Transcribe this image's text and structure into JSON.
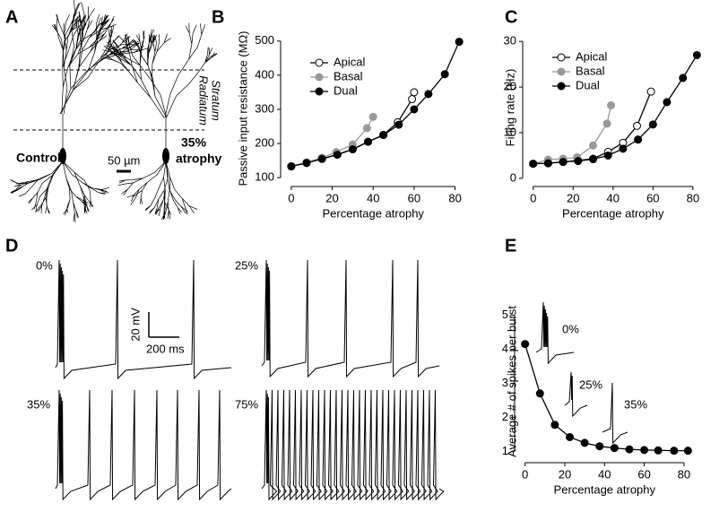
{
  "panel_labels": {
    "a": "A",
    "b": "B",
    "c": "C",
    "d": "D",
    "e": "E"
  },
  "panel_a": {
    "layer_label_1": "Stratum",
    "layer_label_2": "Radiatum",
    "control_label": "Control",
    "atrophy_label_1": "35%",
    "atrophy_label_2": "atrophy",
    "scale_label": "50 µm"
  },
  "panel_d": {
    "trace_labels": [
      "0%",
      "25%",
      "35%",
      "75%"
    ],
    "scale_voltage": "20 mV",
    "scale_time": "200 ms"
  },
  "chart_data": [
    {
      "type": "line",
      "x_label": "Percentage atrophy",
      "y_label": "Passive input resistance (MΩ)",
      "xlim": [
        -3,
        85
      ],
      "ylim": [
        95,
        510
      ],
      "xticks": [
        0,
        20,
        40,
        60,
        80
      ],
      "yticks": [
        100,
        200,
        300,
        400,
        500
      ],
      "legend": "upper left",
      "series": [
        {
          "name": "Apical",
          "color": "#000000",
          "marker": "open",
          "x": [
            0,
            7.5,
            15,
            22.5,
            30,
            37.5,
            45,
            52,
            59,
            60
          ],
          "values": [
            133,
            143,
            155,
            168,
            183,
            205,
            225,
            262,
            330,
            350
          ]
        },
        {
          "name": "Basal",
          "color": "#999999",
          "marker": "filled",
          "x": [
            0,
            7.5,
            15,
            22,
            30,
            37,
            40
          ],
          "values": [
            133,
            145,
            158,
            175,
            197,
            245,
            278
          ]
        },
        {
          "name": "Dual",
          "color": "#000000",
          "marker": "filled",
          "x": [
            0,
            7.5,
            15,
            22.5,
            30,
            37.5,
            45,
            52.5,
            60,
            67,
            75,
            82
          ],
          "values": [
            133,
            143,
            155,
            167,
            183,
            205,
            225,
            255,
            300,
            345,
            403,
            498
          ]
        }
      ]
    },
    {
      "type": "line",
      "x_label": "Percentage atrophy",
      "y_label": "Firing rate (Hz)",
      "xlim": [
        -3,
        85
      ],
      "ylim": [
        -1,
        32
      ],
      "xticks": [
        0,
        20,
        40,
        60,
        80
      ],
      "yticks": [
        0,
        10,
        20,
        30
      ],
      "legend": "upper left",
      "series": [
        {
          "name": "Apical",
          "color": "#000000",
          "marker": "open",
          "x": [
            0,
            7.5,
            15,
            22.5,
            30,
            37.5,
            45,
            52,
            59
          ],
          "values": [
            3.2,
            3.3,
            3.6,
            3.9,
            4.3,
            5.8,
            7.8,
            11.5,
            19
          ]
        },
        {
          "name": "Basal",
          "color": "#999999",
          "marker": "filled",
          "x": [
            0,
            7.5,
            15,
            22,
            30,
            37,
            39
          ],
          "values": [
            3.2,
            4.1,
            4.3,
            4.6,
            7.2,
            12,
            16
          ]
        },
        {
          "name": "Dual",
          "color": "#000000",
          "marker": "filled",
          "x": [
            0,
            7.5,
            15,
            22.5,
            30,
            37.5,
            45,
            52.5,
            60,
            67,
            75,
            82
          ],
          "values": [
            3.2,
            3.3,
            3.6,
            3.8,
            4.2,
            5,
            6.5,
            8.5,
            11.8,
            16.7,
            22,
            27
          ]
        }
      ]
    },
    {
      "type": "line",
      "x_label": "Percentage atrophy",
      "y_label": "Average # of spikes per burst",
      "xlim": [
        -3,
        85
      ],
      "ylim": [
        0.8,
        5.3
      ],
      "xticks": [
        0,
        20,
        40,
        60,
        80
      ],
      "yticks": [
        1,
        2,
        3,
        4,
        5
      ],
      "annotations": [
        "0%",
        "25%",
        "35%"
      ],
      "series": [
        {
          "color": "#000000",
          "marker": "filled",
          "x": [
            0,
            7.5,
            15,
            22.5,
            30,
            37.5,
            45,
            52.5,
            60,
            67,
            75,
            82
          ],
          "values": [
            4.15,
            2.7,
            1.78,
            1.42,
            1.25,
            1.15,
            1.1,
            1.06,
            1.04,
            1.03,
            1.02,
            1.02
          ]
        }
      ]
    }
  ]
}
